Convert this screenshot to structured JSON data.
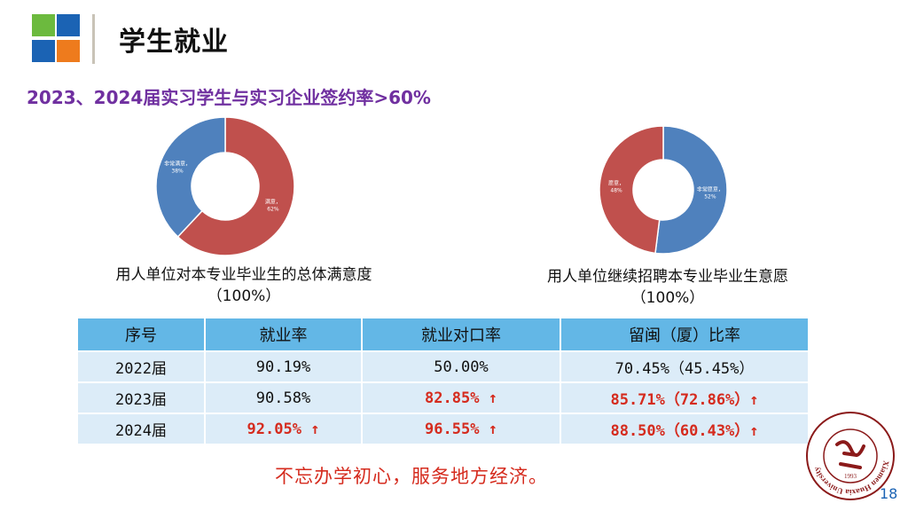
{
  "header": {
    "title": "学生就业"
  },
  "subtitle": "2023、2024届实习学生与实习企业签约率>60%",
  "charts": {
    "left": {
      "caption_line1": "用人单位对本专业毕业生的总体满意度",
      "caption_line2": "（100%）",
      "slice_labels": [
        "满意，62%",
        "非常满意，38%"
      ]
    },
    "right": {
      "caption_line1": "用人单位继续招聘本专业毕业生意愿",
      "caption_line2": "（100%）",
      "slice_labels": [
        "非常愿意，52%",
        "愿意，48%"
      ]
    }
  },
  "chart_data": [
    {
      "type": "pie",
      "title": "用人单位对本专业毕业生的总体满意度",
      "categories": [
        "满意",
        "非常满意"
      ],
      "values": [
        62,
        38
      ],
      "colors": [
        "#c0504d",
        "#4f81bd"
      ]
    },
    {
      "type": "pie",
      "title": "用人单位继续招聘本专业毕业生意愿",
      "categories": [
        "非常愿意",
        "愿意"
      ],
      "values": [
        52,
        48
      ],
      "colors": [
        "#4f81bd",
        "#c0504d"
      ]
    }
  ],
  "table": {
    "headers": [
      "序号",
      "就业率",
      "就业对口率",
      "留闽（厦）比率"
    ],
    "rows": [
      [
        "2022届",
        "90.19%",
        "50.00%",
        "70.45%（45.45%）"
      ],
      [
        "2023届",
        "90.58%",
        "82.85% ↑",
        "85.71%（72.86%）↑"
      ],
      [
        "2024届",
        "92.05% ↑",
        "96.55% ↑",
        "88.50%（60.43%）↑"
      ]
    ]
  },
  "motto": "不忘办学初心，服务地方经济。",
  "seal": {
    "text": "Xiamen Huaxia University",
    "year": "1993"
  },
  "page_number": "18",
  "colors": {
    "accent_red": "#d52b1e",
    "subtitle_purple": "#7030a0",
    "table_header": "#63b7e6",
    "table_cell": "#dcecf8"
  }
}
